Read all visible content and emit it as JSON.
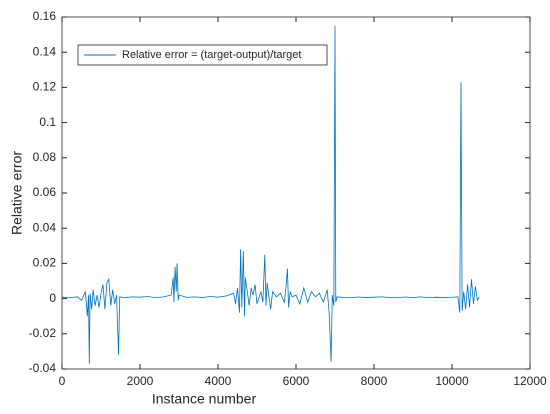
{
  "chart_data": {
    "type": "line",
    "xlabel": "Instance number",
    "ylabel": "Relative error",
    "x": [
      0,
      200,
      400,
      500,
      600,
      650,
      680,
      700,
      720,
      760,
      800,
      850,
      900,
      950,
      1000,
      1050,
      1100,
      1150,
      1200,
      1250,
      1300,
      1350,
      1400,
      1450,
      1480,
      1600,
      1800,
      2000,
      2200,
      2400,
      2600,
      2800,
      2850,
      2870,
      2900,
      2930,
      2950,
      2980,
      3000,
      3200,
      3400,
      3600,
      3800,
      4000,
      4200,
      4400,
      4450,
      4500,
      4550,
      4580,
      4610,
      4650,
      4680,
      4700,
      4750,
      4800,
      4850,
      4900,
      4950,
      5000,
      5100,
      5150,
      5200,
      5230,
      5260,
      5300,
      5350,
      5400,
      5500,
      5600,
      5700,
      5750,
      5780,
      5810,
      5850,
      5900,
      6000,
      6100,
      6200,
      6300,
      6400,
      6500,
      6600,
      6700,
      6800,
      6850,
      6900,
      6930,
      6970,
      7000,
      7020,
      7050,
      7200,
      7400,
      7600,
      7800,
      8000,
      8200,
      8400,
      8600,
      8800,
      9000,
      9200,
      9400,
      9600,
      9800,
      10000,
      10150,
      10200,
      10230,
      10260,
      10300,
      10350,
      10400,
      10450,
      10500,
      10550,
      10600,
      10650,
      10700
    ],
    "series": [
      {
        "name": "Relative error = (target-output)/target",
        "color": "#0072BD",
        "values": [
          0.0008,
          0.0005,
          0.001,
          -0.001,
          0.004,
          -0.01,
          0.002,
          -0.037,
          0.003,
          -0.006,
          0.005,
          -0.004,
          0.002,
          -0.005,
          0.003,
          0.008,
          -0.006,
          0.009,
          0.011,
          -0.004,
          0.005,
          -0.003,
          0.002,
          -0.032,
          0.001,
          0.0005,
          0.001,
          0.0008,
          0.0012,
          0.0005,
          0.001,
          0.002,
          0.012,
          -0.002,
          0.018,
          0.004,
          0.02,
          -0.001,
          0.002,
          0.0007,
          0.001,
          0.0006,
          0.0012,
          0.0008,
          0.0015,
          0.003,
          -0.003,
          0.006,
          -0.008,
          0.028,
          -0.005,
          0.027,
          -0.01,
          0.012,
          0.004,
          -0.004,
          0.006,
          0.002,
          0.008,
          -0.003,
          0.004,
          -0.002,
          0.025,
          -0.004,
          0.009,
          0.002,
          -0.006,
          0.004,
          0.001,
          0.003,
          -0.002,
          0.008,
          0.017,
          -0.005,
          0.004,
          0.001,
          0.002,
          -0.003,
          0.006,
          -0.002,
          0.004,
          0.001,
          0.003,
          -0.002,
          0.005,
          -0.008,
          -0.036,
          0.002,
          -0.004,
          0.155,
          -0.002,
          0.001,
          0.0007,
          0.0005,
          0.0009,
          0.0006,
          0.0008,
          0.001,
          0.0006,
          0.0005,
          0.0009,
          0.0006,
          0.001,
          0.0005,
          0.0008,
          0.0006,
          0.0007,
          0.001,
          -0.008,
          0.123,
          -0.007,
          0.004,
          -0.006,
          0.008,
          -0.005,
          0.011,
          -0.003,
          0.007,
          -0.001,
          0.001
        ]
      }
    ],
    "xlim": [
      0,
      12000
    ],
    "xticks": [
      0,
      2000,
      4000,
      6000,
      8000,
      10000,
      12000
    ],
    "ylim": [
      -0.04,
      0.16
    ],
    "yticks": [
      -0.04,
      -0.02,
      0,
      0.02,
      0.04,
      0.06,
      0.08,
      0.1,
      0.12,
      0.14,
      0.16
    ],
    "legend": "upper left"
  }
}
